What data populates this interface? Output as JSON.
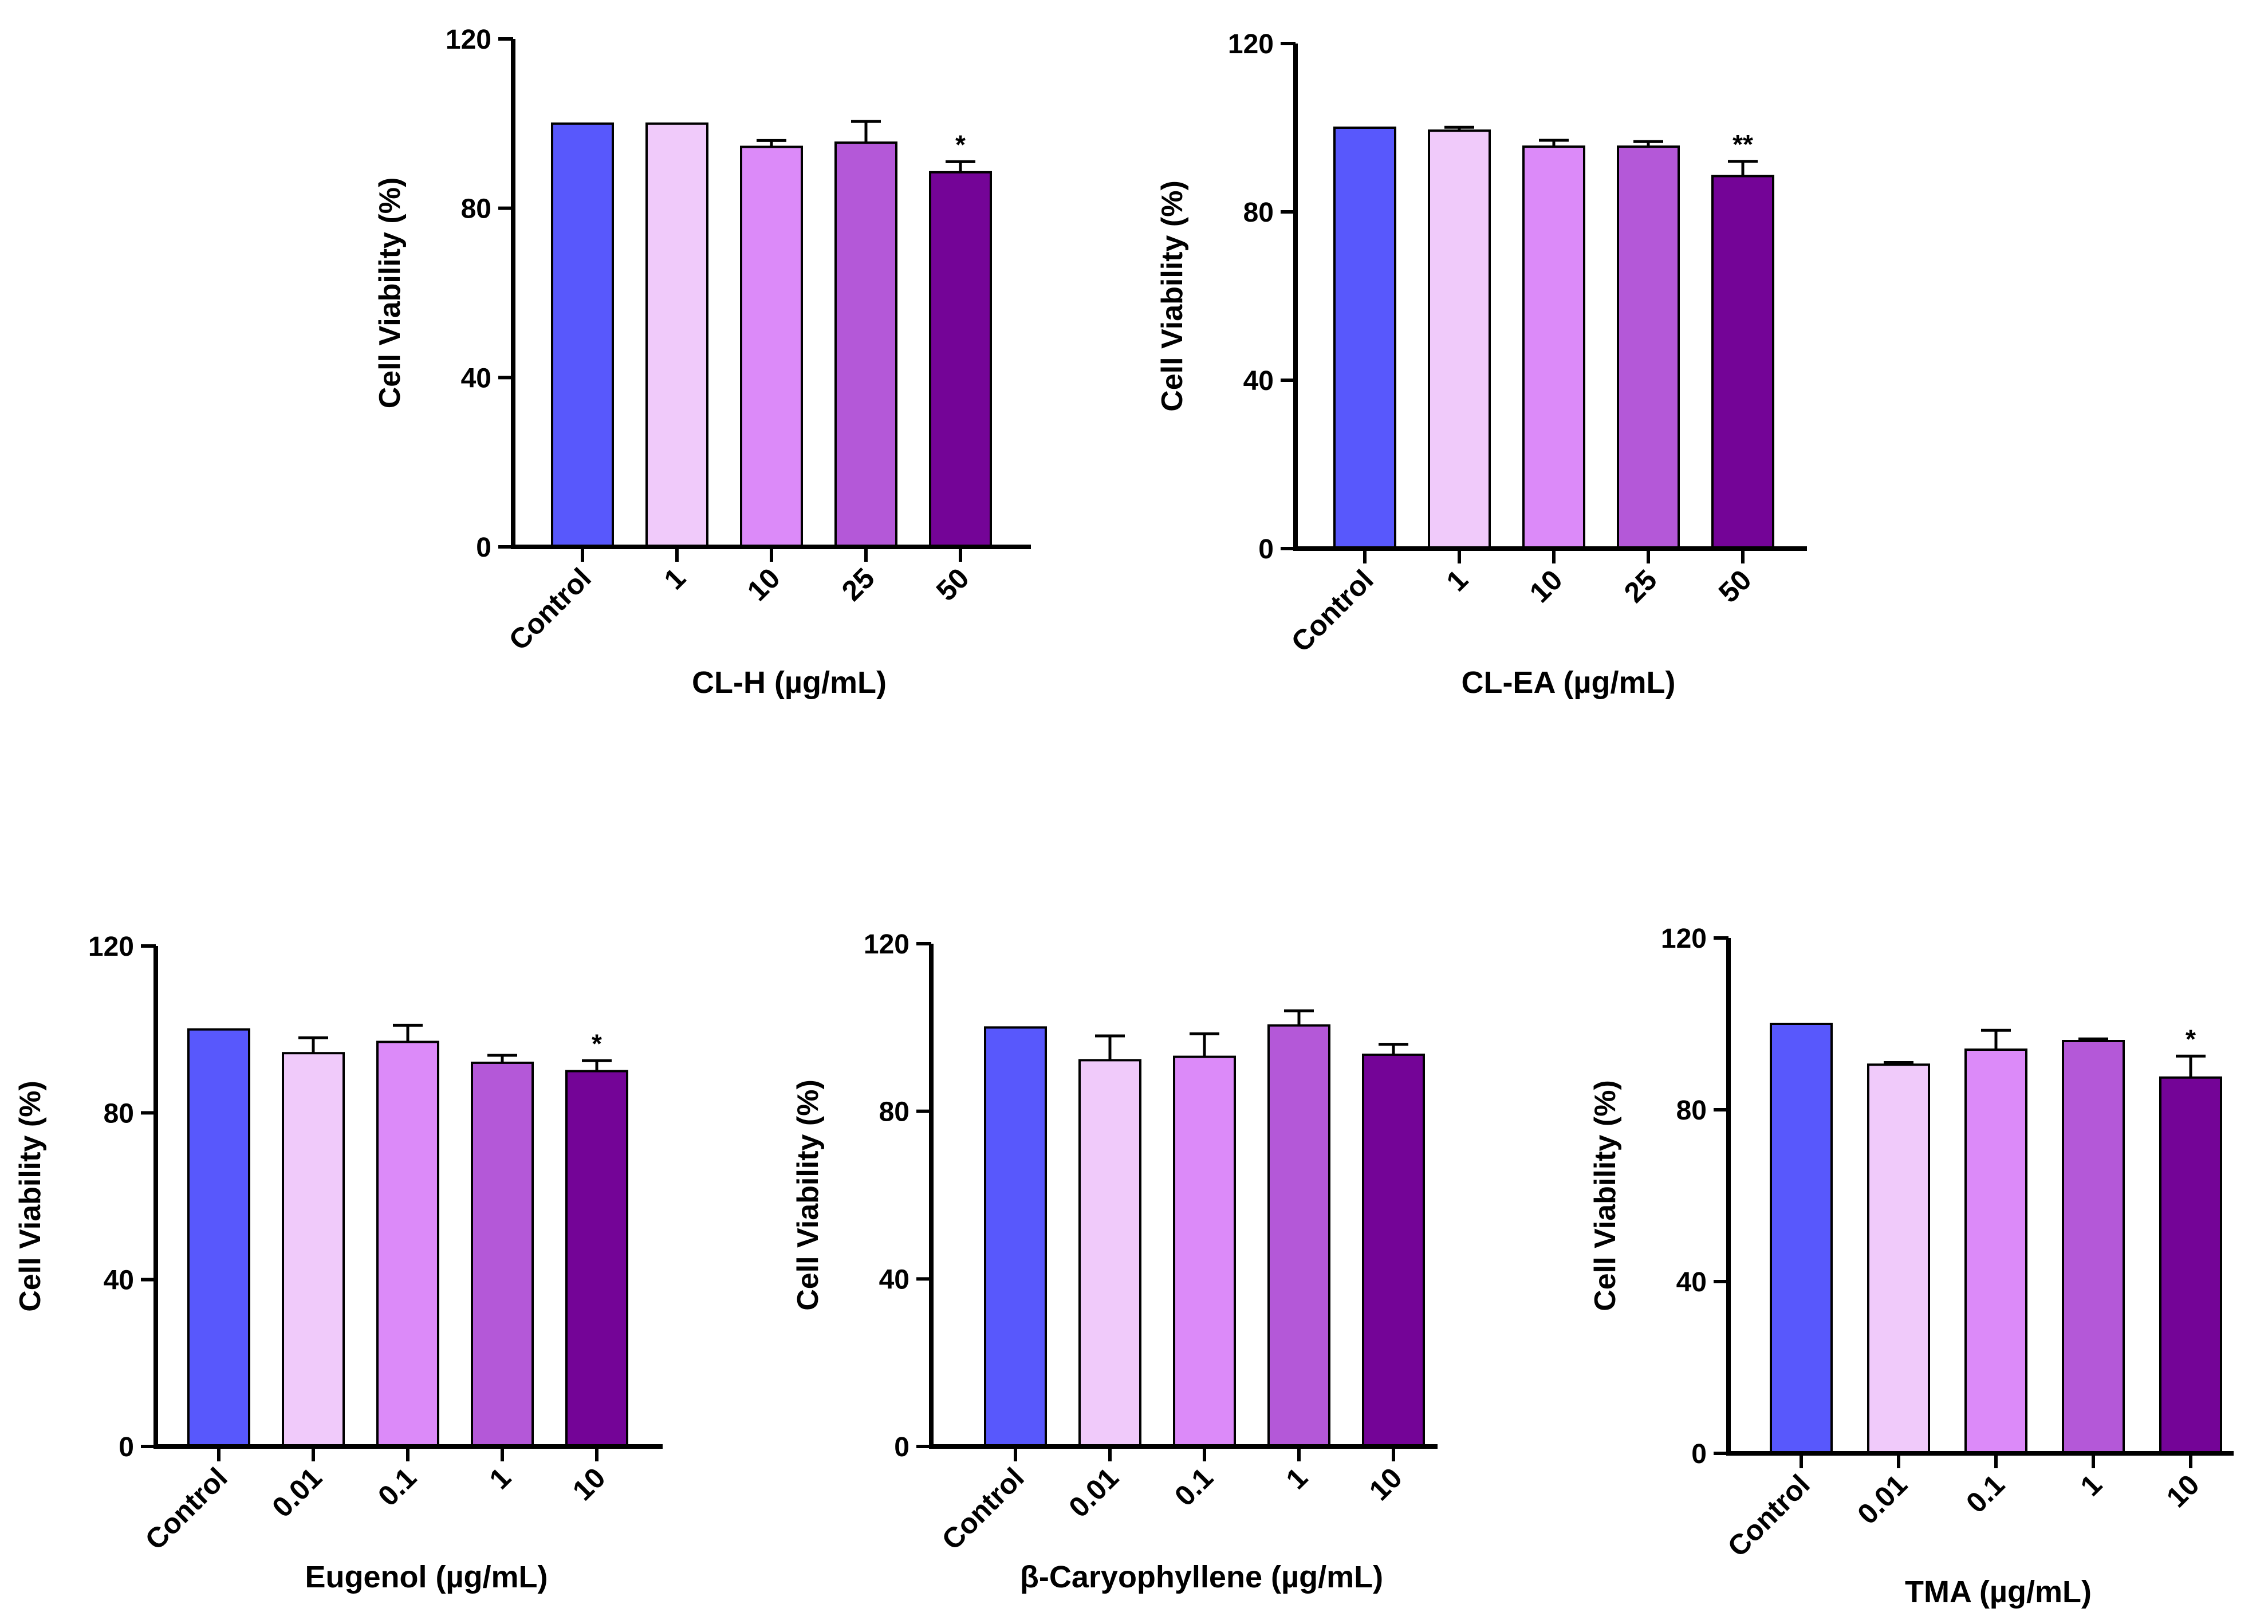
{
  "chart_data": [
    {
      "type": "bar",
      "id": "clh",
      "xlabel": "CL-H (µg/mL)",
      "ylabel": "Cell Viability (%)",
      "categories": [
        "Control",
        "1",
        "10",
        "25",
        "50"
      ],
      "values": [
        100,
        100,
        94.5,
        95.5,
        88.5
      ],
      "errors": [
        0,
        0,
        1.5,
        5,
        2.5
      ],
      "significance": [
        "",
        "",
        "",
        "",
        "*"
      ],
      "ylim": [
        0,
        120
      ],
      "yticks": [
        0,
        40,
        80,
        120
      ],
      "bar_colors": [
        "#5858fc",
        "#f0cafa",
        "#dc8af9",
        "#b458d8",
        "#740497"
      ]
    },
    {
      "type": "bar",
      "id": "clea",
      "xlabel": "CL-EA (µg/mL)",
      "ylabel": "Cell Viability (%)",
      "categories": [
        "Control",
        "1",
        "10",
        "25",
        "50"
      ],
      "values": [
        100,
        99.3,
        95.5,
        95.5,
        88.5
      ],
      "errors": [
        0,
        0.8,
        1.5,
        1.2,
        3.5
      ],
      "significance": [
        "",
        "",
        "",
        "",
        "**"
      ],
      "ylim": [
        0,
        120
      ],
      "yticks": [
        0,
        40,
        80,
        120
      ],
      "bar_colors": [
        "#5858fc",
        "#f0cafa",
        "#dc8af9",
        "#b458d8",
        "#740497"
      ]
    },
    {
      "type": "bar",
      "id": "eugenol",
      "xlabel": "Eugenol (µg/mL)",
      "ylabel": "Cell Viability (%)",
      "categories": [
        "Control",
        "0.01",
        "0.1",
        "1",
        "10"
      ],
      "values": [
        100,
        94.3,
        97,
        92,
        90
      ],
      "errors": [
        0,
        3.7,
        4,
        1.8,
        2.5
      ],
      "significance": [
        "",
        "",
        "",
        "",
        "*"
      ],
      "ylim": [
        0,
        120
      ],
      "yticks": [
        0,
        40,
        80,
        120
      ],
      "bar_colors": [
        "#5858fc",
        "#f0cafa",
        "#dc8af9",
        "#b458d8",
        "#740497"
      ]
    },
    {
      "type": "bar",
      "id": "caryophyllene",
      "xlabel": "β-Caryophyllene (µg/mL)",
      "ylabel": "Cell Viability (%)",
      "categories": [
        "Control",
        "0.01",
        "0.1",
        "1",
        "10"
      ],
      "values": [
        100,
        92.2,
        93,
        100.5,
        93.5
      ],
      "errors": [
        0,
        5.8,
        5.5,
        3.5,
        2.5
      ],
      "significance": [
        "",
        "",
        "",
        "",
        ""
      ],
      "ylim": [
        0,
        120
      ],
      "yticks": [
        0,
        40,
        80,
        120
      ],
      "bar_colors": [
        "#5858fc",
        "#f0cafa",
        "#dc8af9",
        "#b458d8",
        "#740497"
      ]
    },
    {
      "type": "bar",
      "id": "tma",
      "xlabel": "TMA (µg/mL)",
      "ylabel": "Cell Viability (%)",
      "categories": [
        "Control",
        "0.01",
        "0.1",
        "1",
        "10"
      ],
      "values": [
        100,
        90.5,
        94,
        96,
        87.5
      ],
      "errors": [
        0,
        0.5,
        4.5,
        0.5,
        5
      ],
      "significance": [
        "",
        "",
        "",
        "",
        "*"
      ],
      "ylim": [
        0,
        120
      ],
      "yticks": [
        0,
        40,
        80,
        120
      ],
      "bar_colors": [
        "#5858fc",
        "#f0cafa",
        "#dc8af9",
        "#b458d8",
        "#740497"
      ]
    }
  ]
}
